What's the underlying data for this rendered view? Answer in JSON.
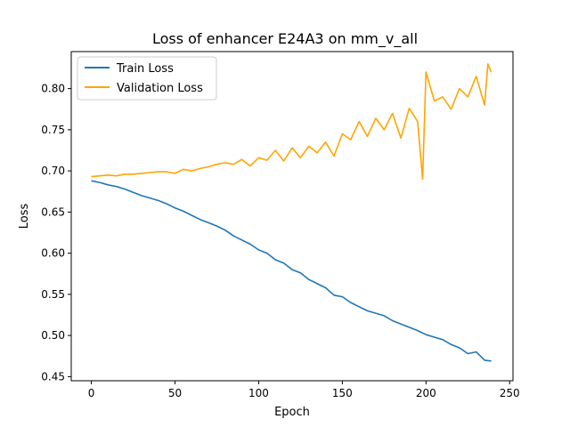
{
  "chart_data": {
    "type": "line",
    "title": "Loss of enhancer E24A3 on mm_v_all",
    "xlabel": "Epoch",
    "ylabel": "Loss",
    "xlim": [
      -12,
      252
    ],
    "ylim": [
      0.445,
      0.845
    ],
    "xticks": [
      0,
      50,
      100,
      150,
      200,
      250
    ],
    "yticks": [
      0.45,
      0.5,
      0.55,
      0.6,
      0.65,
      0.7,
      0.75,
      0.8
    ],
    "ytick_labels": [
      "0.45",
      "0.50",
      "0.55",
      "0.60",
      "0.65",
      "0.70",
      "0.75",
      "0.80"
    ],
    "legend_position": "top-left",
    "grid": false,
    "series": [
      {
        "name": "Train Loss",
        "color": "#1f77b4",
        "x": [
          0,
          5,
          10,
          15,
          20,
          25,
          30,
          35,
          40,
          45,
          50,
          55,
          60,
          65,
          70,
          75,
          80,
          85,
          90,
          95,
          100,
          105,
          110,
          115,
          120,
          125,
          130,
          135,
          140,
          145,
          150,
          155,
          160,
          165,
          170,
          175,
          180,
          185,
          190,
          195,
          200,
          205,
          210,
          215,
          220,
          225,
          230,
          235,
          239
        ],
        "values": [
          0.688,
          0.686,
          0.683,
          0.681,
          0.678,
          0.674,
          0.67,
          0.667,
          0.664,
          0.66,
          0.655,
          0.651,
          0.646,
          0.641,
          0.637,
          0.633,
          0.628,
          0.621,
          0.616,
          0.611,
          0.604,
          0.6,
          0.592,
          0.588,
          0.58,
          0.576,
          0.568,
          0.563,
          0.558,
          0.549,
          0.547,
          0.54,
          0.535,
          0.53,
          0.527,
          0.524,
          0.518,
          0.514,
          0.51,
          0.506,
          0.501,
          0.498,
          0.495,
          0.489,
          0.485,
          0.478,
          0.48,
          0.47,
          0.469
        ]
      },
      {
        "name": "Validation Loss",
        "color": "#ffa500",
        "x": [
          0,
          5,
          10,
          15,
          20,
          25,
          30,
          35,
          40,
          45,
          50,
          55,
          60,
          65,
          70,
          75,
          80,
          85,
          90,
          95,
          100,
          105,
          110,
          115,
          120,
          125,
          130,
          135,
          140,
          145,
          150,
          155,
          160,
          165,
          170,
          175,
          180,
          185,
          190,
          195,
          198,
          200,
          205,
          210,
          215,
          220,
          225,
          230,
          235,
          237,
          239
        ],
        "values": [
          0.693,
          0.694,
          0.695,
          0.694,
          0.696,
          0.696,
          0.697,
          0.698,
          0.699,
          0.699,
          0.697,
          0.702,
          0.7,
          0.703,
          0.705,
          0.708,
          0.71,
          0.708,
          0.714,
          0.706,
          0.716,
          0.713,
          0.725,
          0.712,
          0.728,
          0.716,
          0.73,
          0.722,
          0.735,
          0.718,
          0.745,
          0.738,
          0.76,
          0.742,
          0.764,
          0.75,
          0.77,
          0.74,
          0.776,
          0.76,
          0.69,
          0.82,
          0.785,
          0.79,
          0.775,
          0.8,
          0.79,
          0.815,
          0.78,
          0.83,
          0.82
        ]
      }
    ]
  }
}
